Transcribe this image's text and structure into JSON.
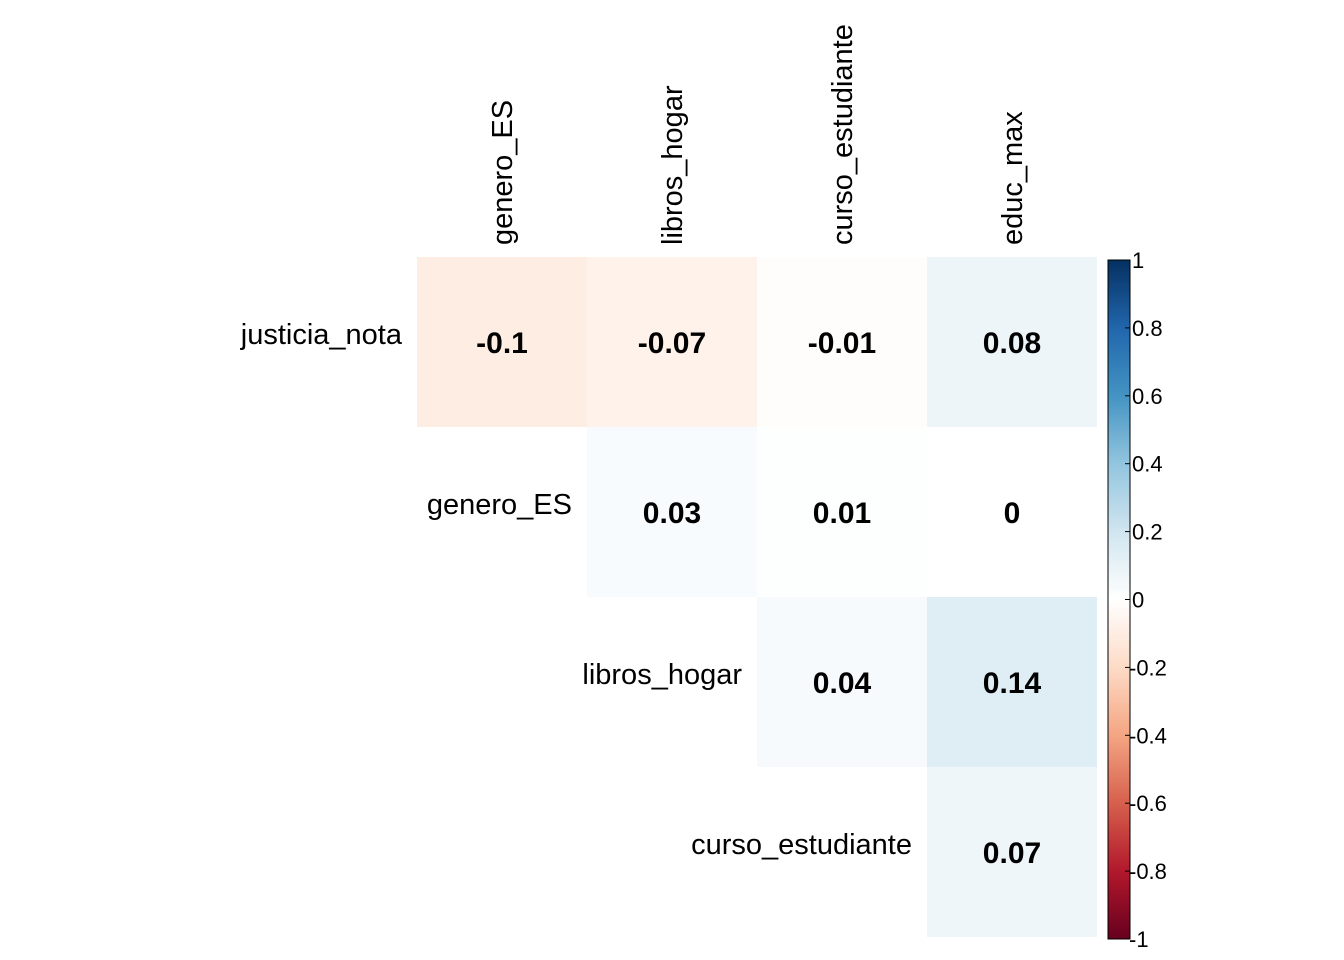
{
  "chart_data": {
    "type": "heatmap",
    "subtype": "correlation-matrix-upper",
    "row_labels": [
      "justicia_nota",
      "genero_ES",
      "libros_hogar",
      "curso_estudiante"
    ],
    "col_labels": [
      "genero_ES",
      "libros_hogar",
      "curso_estudiante",
      "educ_max"
    ],
    "cells": [
      {
        "row": 0,
        "col": 0,
        "value": -0.1,
        "label": "-0.1"
      },
      {
        "row": 0,
        "col": 1,
        "value": -0.07,
        "label": "-0.07"
      },
      {
        "row": 0,
        "col": 2,
        "value": -0.01,
        "label": "-0.01"
      },
      {
        "row": 0,
        "col": 3,
        "value": 0.08,
        "label": "0.08"
      },
      {
        "row": 1,
        "col": 1,
        "value": 0.03,
        "label": "0.03"
      },
      {
        "row": 1,
        "col": 2,
        "value": 0.01,
        "label": "0.01"
      },
      {
        "row": 1,
        "col": 3,
        "value": 0,
        "label": "0"
      },
      {
        "row": 2,
        "col": 2,
        "value": 0.04,
        "label": "0.04"
      },
      {
        "row": 2,
        "col": 3,
        "value": 0.14,
        "label": "0.14"
      },
      {
        "row": 3,
        "col": 3,
        "value": 0.07,
        "label": "0.07"
      }
    ],
    "colorbar": {
      "range": [
        -1,
        1
      ],
      "ticks": [
        1,
        0.8,
        0.6,
        0.4,
        0.2,
        0,
        -0.2,
        -0.4,
        -0.6,
        -0.8,
        -1
      ],
      "tick_labels": [
        "1",
        "0.8",
        "0.6",
        "0.4",
        "0.2",
        "0",
        "-0.2",
        "-0.4",
        "-0.6",
        "-0.8",
        "-1"
      ],
      "colors": [
        "#67001F",
        "#B2182B",
        "#D6604D",
        "#F4A582",
        "#FDDBC7",
        "#FFFFFF",
        "#D1E5F0",
        "#92C5DE",
        "#4393C3",
        "#2166AC",
        "#053061"
      ]
    }
  }
}
